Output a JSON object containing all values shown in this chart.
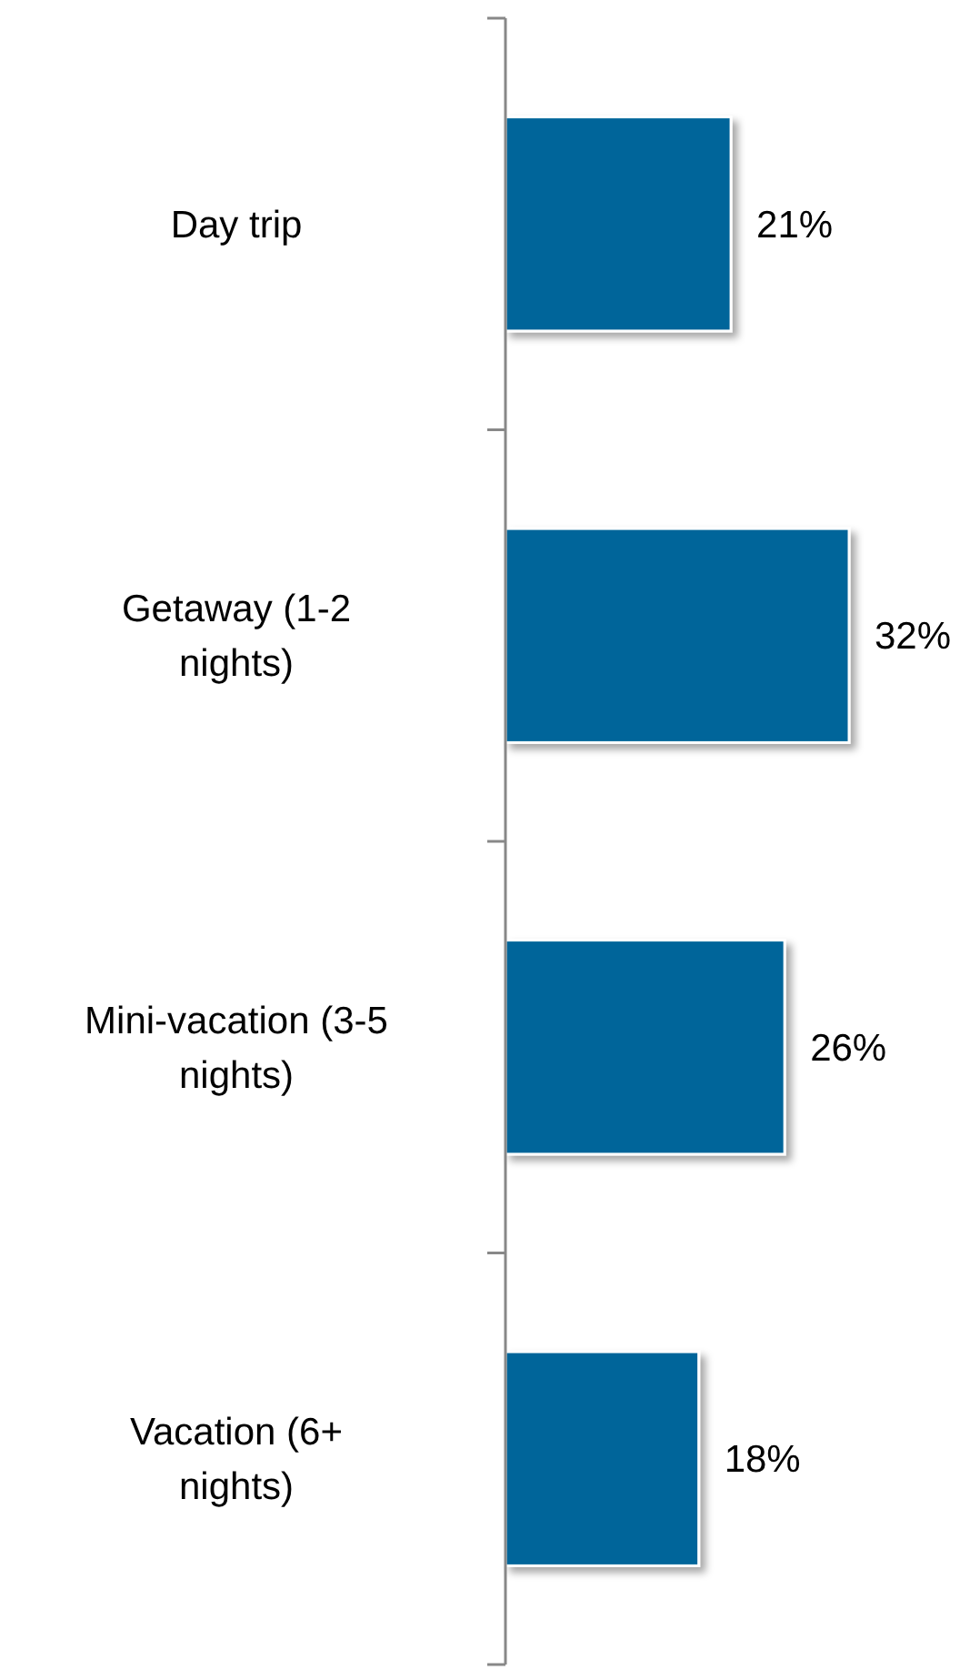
{
  "chart_data": {
    "type": "bar",
    "orientation": "horizontal",
    "categories": [
      "Day trip",
      "Getaway (1-2 nights)",
      "Mini-vacation (3-5 nights)",
      "Vacation (6+ nights)"
    ],
    "values": [
      21,
      32,
      26,
      18
    ],
    "color": "#00659a",
    "value_labels": [
      "21%",
      "32%",
      "26%",
      "18%"
    ]
  }
}
